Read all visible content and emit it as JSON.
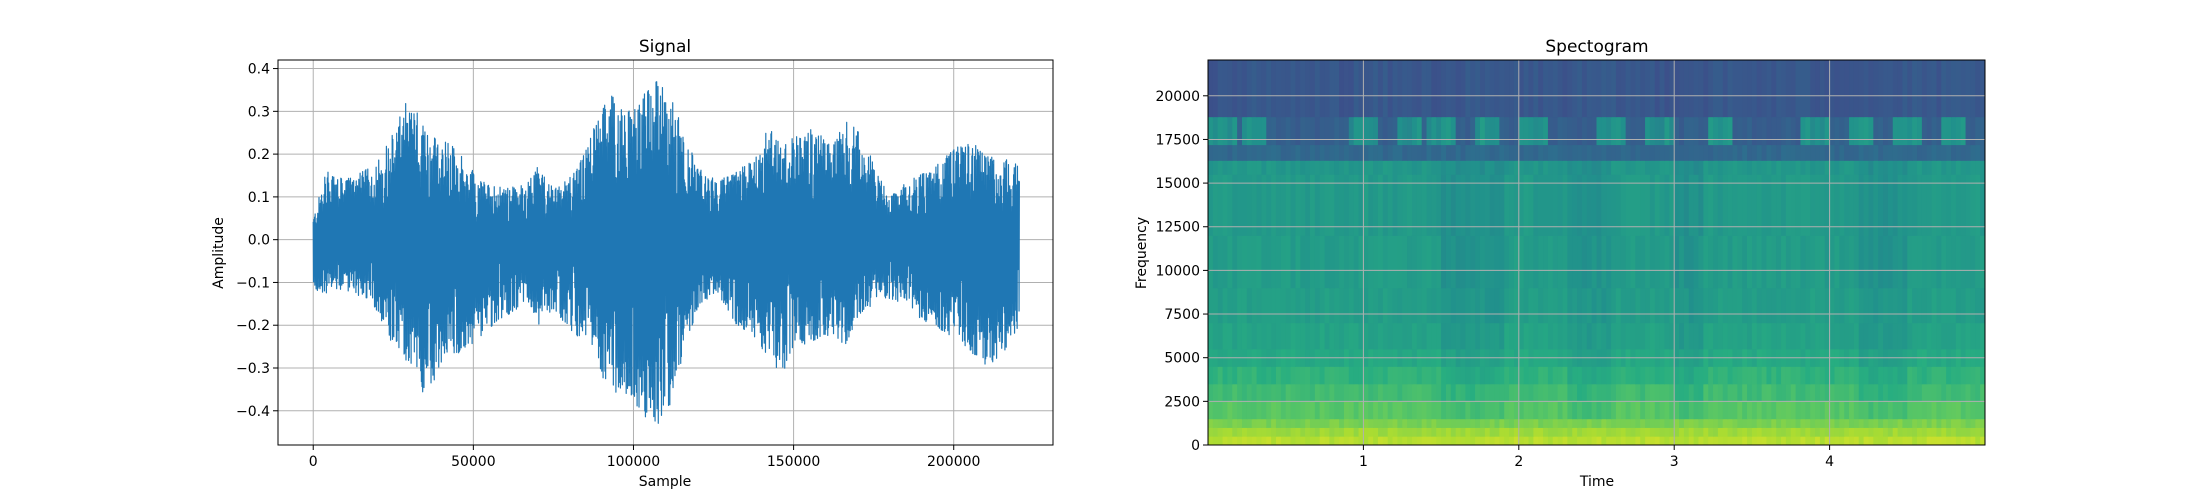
{
  "chart_data": [
    {
      "type": "line",
      "title": "Signal",
      "xlabel": "Sample",
      "ylabel": "Amplitude",
      "xlim": [
        -11000,
        231000
      ],
      "ylim": [
        -0.48,
        0.42
      ],
      "xticks": [
        0,
        50000,
        100000,
        150000,
        200000
      ],
      "xtick_labels": [
        "0",
        "50000",
        "100000",
        "150000",
        "200000"
      ],
      "yticks": [
        -0.4,
        -0.3,
        -0.2,
        -0.1,
        0.0,
        0.1,
        0.2,
        0.3,
        0.4
      ],
      "ytick_labels": [
        "−0.4",
        "−0.3",
        "−0.2",
        "−0.1",
        "0.0",
        "0.1",
        "0.2",
        "0.3",
        "0.4"
      ],
      "grid": true,
      "color": "#1f77b4",
      "sample_range": [
        0,
        220500
      ],
      "envelope_x": [
        0,
        4000,
        10000,
        18000,
        25000,
        30000,
        35000,
        40000,
        45000,
        52000,
        60000,
        66000,
        70000,
        76000,
        82000,
        86000,
        90000,
        95000,
        100000,
        104000,
        108000,
        112000,
        116000,
        120000,
        126000,
        132000,
        138000,
        142000,
        146000,
        150000,
        156000,
        162000,
        166000,
        170000,
        175000,
        180000,
        186000,
        192000,
        198000,
        204000,
        210000,
        216000,
        220500
      ],
      "envelope_upper": [
        0.05,
        0.16,
        0.14,
        0.17,
        0.25,
        0.34,
        0.26,
        0.24,
        0.21,
        0.14,
        0.12,
        0.13,
        0.17,
        0.12,
        0.16,
        0.23,
        0.31,
        0.35,
        0.3,
        0.35,
        0.38,
        0.33,
        0.25,
        0.17,
        0.14,
        0.16,
        0.19,
        0.28,
        0.22,
        0.24,
        0.26,
        0.22,
        0.28,
        0.26,
        0.18,
        0.1,
        0.14,
        0.16,
        0.2,
        0.24,
        0.2,
        0.19,
        0.18
      ],
      "envelope_lower": [
        -0.12,
        -0.13,
        -0.12,
        -0.14,
        -0.25,
        -0.29,
        -0.38,
        -0.3,
        -0.27,
        -0.23,
        -0.18,
        -0.15,
        -0.2,
        -0.17,
        -0.23,
        -0.22,
        -0.34,
        -0.36,
        -0.39,
        -0.42,
        -0.44,
        -0.38,
        -0.26,
        -0.16,
        -0.12,
        -0.2,
        -0.23,
        -0.28,
        -0.32,
        -0.26,
        -0.24,
        -0.22,
        -0.25,
        -0.18,
        -0.15,
        -0.14,
        -0.16,
        -0.2,
        -0.22,
        -0.25,
        -0.3,
        -0.27,
        -0.2
      ]
    },
    {
      "type": "heatmap",
      "title": "Spectogram",
      "xlabel": "Time",
      "ylabel": "Frequency",
      "xlim": [
        0.0,
        5.0
      ],
      "ylim": [
        0,
        22050
      ],
      "xticks": [
        1,
        2,
        3,
        4
      ],
      "xtick_labels": [
        "1",
        "2",
        "3",
        "4"
      ],
      "yticks": [
        0,
        2500,
        5000,
        7500,
        10000,
        12500,
        15000,
        17500,
        20000
      ],
      "ytick_labels": [
        "0",
        "2500",
        "5000",
        "7500",
        "10000",
        "12500",
        "15000",
        "17500",
        "20000"
      ],
      "grid": true,
      "colormap": "viridis",
      "frequency_bands_hz": [
        0,
        500,
        1000,
        1500,
        2500,
        3500,
        4500,
        5500,
        7000,
        9000,
        12000,
        15500,
        16300,
        17200,
        18800,
        22050
      ],
      "band_intensity": [
        0.9,
        0.86,
        0.8,
        0.74,
        0.69,
        0.65,
        0.61,
        0.58,
        0.56,
        0.55,
        0.54,
        0.53,
        0.34,
        0.3,
        0.27
      ],
      "high_band_bursts_time": [
        0.1,
        0.3,
        1.0,
        1.3,
        1.5,
        1.8,
        2.1,
        2.6,
        2.9,
        3.3,
        3.9,
        4.2,
        4.5,
        4.8
      ],
      "quiet_time_intervals": [
        [
          1.5,
          1.9
        ],
        [
          2.3,
          2.6
        ],
        [
          3.0,
          3.2
        ],
        [
          4.2,
          4.5
        ]
      ]
    }
  ]
}
